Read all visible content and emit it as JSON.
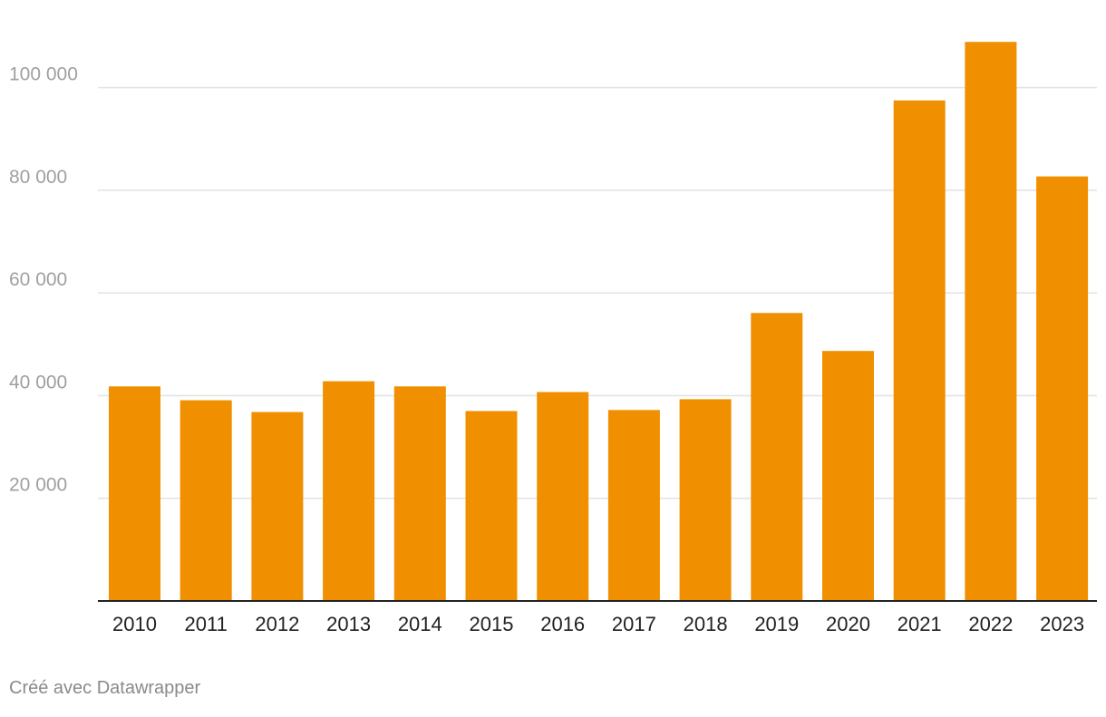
{
  "chart_data": {
    "type": "bar",
    "categories": [
      "2010",
      "2011",
      "2012",
      "2013",
      "2014",
      "2015",
      "2016",
      "2017",
      "2018",
      "2019",
      "2020",
      "2021",
      "2022",
      "2023"
    ],
    "values": [
      41800,
      39100,
      36800,
      42800,
      41800,
      37000,
      40700,
      37200,
      39300,
      56100,
      48700,
      97500,
      108900,
      82700
    ],
    "ylim": [
      0,
      110000
    ],
    "yticks": [
      20000,
      40000,
      60000,
      80000,
      100000
    ],
    "ytick_labels": [
      "20 000",
      "40 000",
      "60 000",
      "80 000",
      "100 000"
    ],
    "grid": true,
    "bar_color": "#f09000",
    "axis_color": "#222222",
    "grid_color": "#e2e2e2",
    "tick_label_color": "#a0a0a0",
    "category_label_color": "#222222"
  },
  "footer": {
    "credit": "Créé avec Datawrapper"
  }
}
